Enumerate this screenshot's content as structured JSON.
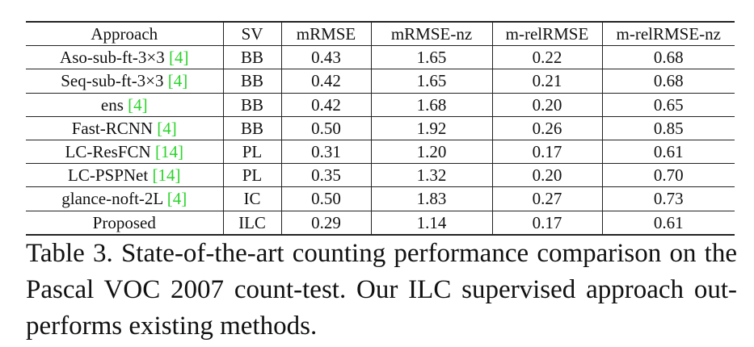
{
  "table": {
    "headers": [
      "Approach",
      "SV",
      "mRMSE",
      "mRMSE-nz",
      "m-relRMSE",
      "m-relRMSE-nz"
    ],
    "rows": [
      {
        "approach": "Aso-sub-ft-3×3 ",
        "cite": "[4]",
        "sv": "BB",
        "mrmse": "0.43",
        "mrmse_nz": "1.65",
        "mrel": "0.22",
        "mrel_nz": "0.68"
      },
      {
        "approach": "Seq-sub-ft-3×3 ",
        "cite": "[4]",
        "sv": "BB",
        "mrmse": "0.42",
        "mrmse_nz": "1.65",
        "mrel": "0.21",
        "mrel_nz": "0.68"
      },
      {
        "approach": "ens ",
        "cite": "[4]",
        "sv": "BB",
        "mrmse": "0.42",
        "mrmse_nz": "1.68",
        "mrel": "0.20",
        "mrel_nz": "0.65"
      },
      {
        "approach": "Fast-RCNN ",
        "cite": "[4]",
        "sv": "BB",
        "mrmse": "0.50",
        "mrmse_nz": "1.92",
        "mrel": "0.26",
        "mrel_nz": "0.85"
      },
      {
        "approach": "LC-ResFCN ",
        "cite": "[14]",
        "sv": "PL",
        "mrmse": "0.31",
        "mrmse_nz": "1.20",
        "mrel": "0.17",
        "mrel_nz": "0.61"
      },
      {
        "approach": "LC-PSPNet ",
        "cite": "[14]",
        "sv": "PL",
        "mrmse": "0.35",
        "mrmse_nz": "1.32",
        "mrel": "0.20",
        "mrel_nz": "0.70"
      },
      {
        "approach": "glance-noft-2L ",
        "cite": "[4]",
        "sv": "IC",
        "mrmse": "0.50",
        "mrmse_nz": "1.83",
        "mrel": "0.27",
        "mrel_nz": "0.73"
      },
      {
        "approach": "Proposed",
        "cite": "",
        "sv": "ILC",
        "mrmse": "0.29",
        "mrmse_nz": "1.14",
        "mrel": "0.17",
        "mrel_nz": "0.61"
      }
    ]
  },
  "caption": {
    "line1": "Table 3. State-of-the-art counting performance comparison on the",
    "line2": "Pascal VOC 2007 count-test.  Our ILC supervised approach out-",
    "line3": "performs existing methods."
  },
  "colors": {
    "citation": "#2bd42b",
    "text": "#111111"
  }
}
